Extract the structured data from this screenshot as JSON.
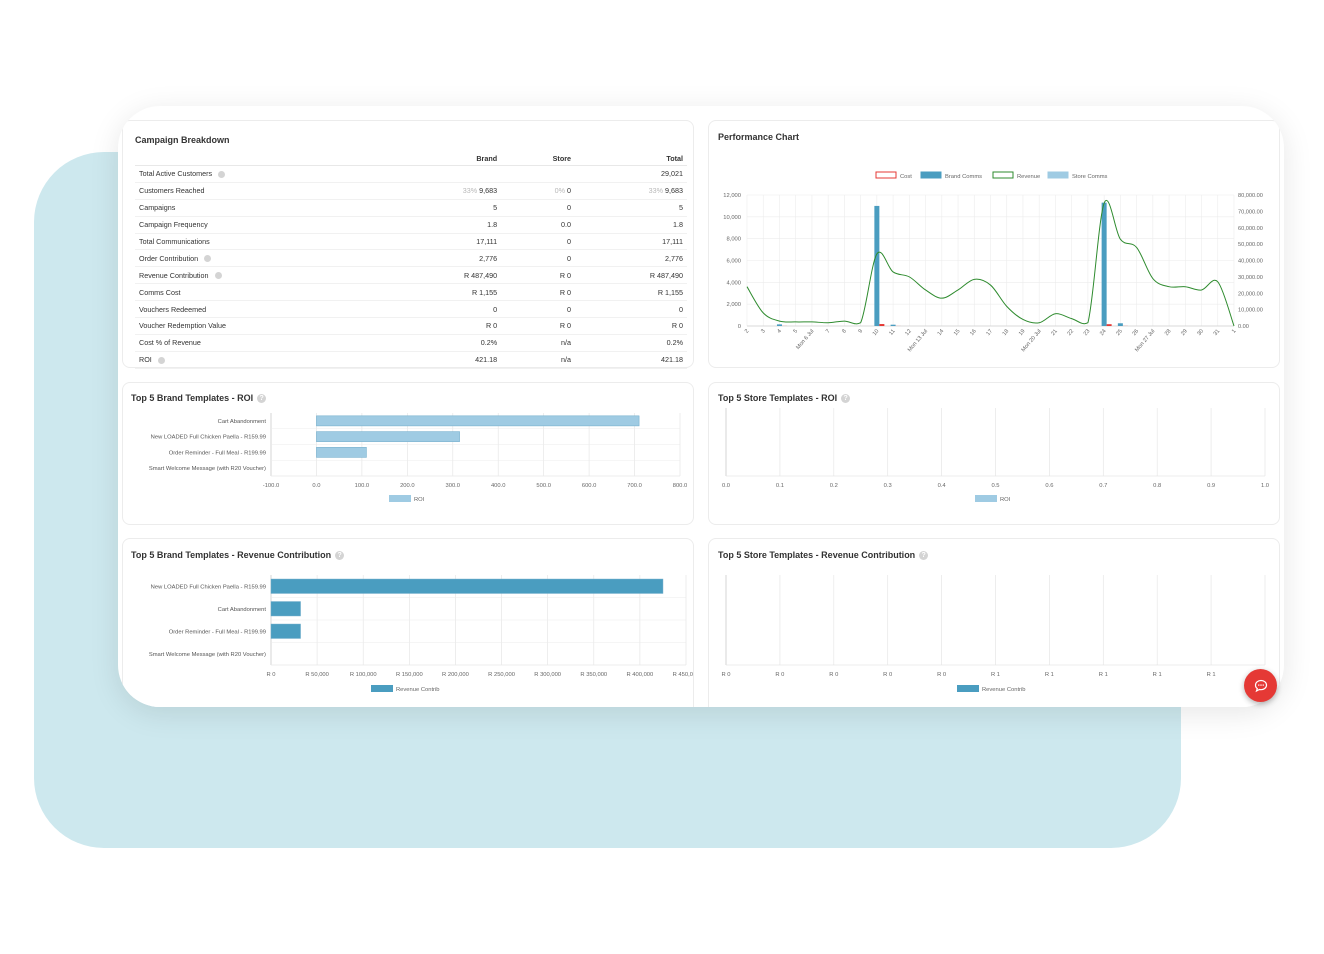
{
  "campaign_breakdown": {
    "title": "Campaign Breakdown",
    "headers": [
      "Brand",
      "Store",
      "Total"
    ],
    "rows": [
      {
        "label": "Total Active Customers",
        "help": true,
        "brand": "",
        "brand_pct": "",
        "store": "",
        "store_pct": "",
        "total": "29,021",
        "total_pct": ""
      },
      {
        "label": "Customers Reached",
        "help": false,
        "brand": "9,683",
        "brand_pct": "33%",
        "store": "0",
        "store_pct": "0%",
        "total": "9,683",
        "total_pct": "33%"
      },
      {
        "label": "Campaigns",
        "help": false,
        "brand": "5",
        "brand_pct": "",
        "store": "0",
        "store_pct": "",
        "total": "5",
        "total_pct": ""
      },
      {
        "label": "Campaign Frequency",
        "help": false,
        "brand": "1.8",
        "brand_pct": "",
        "store": "0.0",
        "store_pct": "",
        "total": "1.8",
        "total_pct": ""
      },
      {
        "label": "Total Communications",
        "help": false,
        "brand": "17,111",
        "brand_pct": "",
        "store": "0",
        "store_pct": "",
        "total": "17,111",
        "total_pct": ""
      },
      {
        "label": "Order Contribution",
        "help": true,
        "brand": "2,776",
        "brand_pct": "",
        "store": "0",
        "store_pct": "",
        "total": "2,776",
        "total_pct": ""
      },
      {
        "label": "Revenue Contribution",
        "help": true,
        "brand": "R 487,490",
        "brand_pct": "",
        "store": "R 0",
        "store_pct": "",
        "total": "R 487,490",
        "total_pct": ""
      },
      {
        "label": "Comms Cost",
        "help": false,
        "brand": "R 1,155",
        "brand_pct": "",
        "store": "R 0",
        "store_pct": "",
        "total": "R 1,155",
        "total_pct": ""
      },
      {
        "label": "Vouchers Redeemed",
        "help": false,
        "brand": "0",
        "brand_pct": "",
        "store": "0",
        "store_pct": "",
        "total": "0",
        "total_pct": ""
      },
      {
        "label": "Voucher Redemption Value",
        "help": false,
        "brand": "R 0",
        "brand_pct": "",
        "store": "R 0",
        "store_pct": "",
        "total": "R 0",
        "total_pct": ""
      },
      {
        "label": "Cost % of Revenue",
        "help": false,
        "brand": "0.2%",
        "brand_pct": "",
        "store": "n/a",
        "store_pct": "",
        "total": "0.2%",
        "total_pct": ""
      },
      {
        "label": "ROI",
        "help": true,
        "brand": "421.18",
        "brand_pct": "",
        "store": "n/a",
        "store_pct": "",
        "total": "421.18",
        "total_pct": ""
      }
    ]
  },
  "colors": {
    "cost": "#e53935",
    "brand_comms": "#4a9dc0",
    "revenue": "#2e8b2e",
    "store_comms": "#9fcbe3",
    "roi_bar": "#9fcbe3",
    "rev_bar": "#4a9dc0",
    "background_blob": "#cde8ee",
    "chat_button": "#e53935"
  },
  "icons": {
    "help": "question-circle-icon",
    "chat": "chat-bubble-icon"
  },
  "help_glyph": "?",
  "chart_data": [
    {
      "type": "line",
      "title": "Performance Chart",
      "legend": [
        "Cost",
        "Brand Comms",
        "Revenue",
        "Store Comms"
      ],
      "legend_position": "top-center",
      "x_labels": [
        "2",
        "3",
        "4",
        "5",
        "Mon 6 Jul",
        "7",
        "8",
        "9",
        "10",
        "11",
        "12",
        "Mon 13 Jul",
        "14",
        "15",
        "16",
        "17",
        "18",
        "19",
        "Mon 20 Jul",
        "21",
        "22",
        "23",
        "24",
        "25",
        "26",
        "Mon 27 Jul",
        "28",
        "29",
        "30",
        "31",
        "1"
      ],
      "y_left_ticks": [
        "0",
        "2,000",
        "4,000",
        "6,000",
        "8,000",
        "10,000",
        "12,000"
      ],
      "y_left_range": [
        0,
        12000
      ],
      "y_right_ticks": [
        "0.00",
        "10,000.00",
        "20,000.00",
        "30,000.00",
        "40,000.00",
        "50,000.00",
        "60,000.00",
        "70,000.00",
        "80,000.00"
      ],
      "y_right_range": [
        0,
        80000
      ],
      "grid": true,
      "series": [
        {
          "name": "Brand Comms",
          "type": "bar",
          "axis": "left",
          "values": [
            0,
            0,
            150,
            0,
            0,
            0,
            0,
            0,
            11000,
            120,
            0,
            0,
            0,
            0,
            0,
            0,
            0,
            0,
            0,
            0,
            0,
            0,
            11300,
            250,
            0,
            0,
            0,
            0,
            0,
            0,
            0
          ]
        },
        {
          "name": "Cost",
          "type": "bar",
          "axis": "right",
          "values": [
            0,
            0,
            50,
            0,
            0,
            0,
            0,
            0,
            1200,
            40,
            0,
            0,
            0,
            0,
            0,
            0,
            0,
            0,
            0,
            0,
            0,
            0,
            1100,
            60,
            0,
            0,
            0,
            0,
            0,
            0,
            0
          ]
        },
        {
          "name": "Revenue",
          "type": "line",
          "axis": "right",
          "values": [
            24000,
            8000,
            3000,
            2500,
            2500,
            2000,
            3000,
            2000,
            44000,
            33000,
            30000,
            22000,
            17000,
            22000,
            28500,
            25000,
            12000,
            4000,
            2000,
            7500,
            4500,
            2000,
            75000,
            53000,
            48000,
            29000,
            24000,
            24000,
            22000,
            27000,
            0
          ]
        },
        {
          "name": "Store Comms",
          "type": "bar",
          "axis": "left",
          "values": [
            0,
            0,
            0,
            0,
            0,
            0,
            0,
            0,
            0,
            0,
            0,
            0,
            0,
            0,
            0,
            0,
            0,
            0,
            0,
            0,
            0,
            0,
            0,
            0,
            0,
            0,
            0,
            0,
            0,
            0,
            0
          ]
        }
      ]
    },
    {
      "type": "bar",
      "orientation": "horizontal",
      "title": "Top 5 Brand Templates - ROI",
      "categories": [
        "Cart Abandonment",
        "New LOADED Full Chicken Paella - R159.99",
        "Order Reminder - Full Meal - R199.99",
        "Smart Welcome Message (with R20 Voucher)"
      ],
      "values": [
        710,
        315,
        110,
        0
      ],
      "xlim": [
        -100,
        800
      ],
      "x_ticks": [
        "-100.0",
        "0.0",
        "100.0",
        "200.0",
        "300.0",
        "400.0",
        "500.0",
        "600.0",
        "700.0",
        "800.0"
      ],
      "legend": [
        "ROI"
      ],
      "legend_position": "bottom"
    },
    {
      "type": "bar",
      "orientation": "horizontal",
      "title": "Top 5 Store Templates - ROI",
      "categories": [],
      "values": [],
      "xlim": [
        0,
        1
      ],
      "x_ticks": [
        "0.0",
        "0.1",
        "0.2",
        "0.3",
        "0.4",
        "0.5",
        "0.6",
        "0.7",
        "0.8",
        "0.9",
        "1.0"
      ],
      "legend": [
        "ROI"
      ],
      "legend_position": "bottom"
    },
    {
      "type": "bar",
      "orientation": "horizontal",
      "title": "Top 5 Brand Templates - Revenue Contribution",
      "categories": [
        "New LOADED Full Chicken Paella - R159.99",
        "Cart Abandonment",
        "Order Reminder - Full Meal - R199.99",
        "Smart Welcome Message (with R20 Voucher)"
      ],
      "values": [
        425000,
        32000,
        32000,
        0
      ],
      "xlim": [
        0,
        450000
      ],
      "x_ticks": [
        "R 0",
        "R 50,000",
        "R 100,000",
        "R 150,000",
        "R 200,000",
        "R 250,000",
        "R 300,000",
        "R 350,000",
        "R 400,000",
        "R 450,000"
      ],
      "legend": [
        "Revenue Contrib"
      ],
      "legend_position": "bottom"
    },
    {
      "type": "bar",
      "orientation": "horizontal",
      "title": "Top 5 Store Templates - Revenue Contribution",
      "categories": [],
      "values": [],
      "xlim": [
        0,
        1
      ],
      "x_ticks": [
        "R 0",
        "R 0",
        "R 0",
        "R 0",
        "R 0",
        "R 1",
        "R 1",
        "R 1",
        "R 1",
        "R 1",
        "R 1"
      ],
      "legend": [
        "Revenue Contrib"
      ],
      "legend_position": "bottom"
    }
  ]
}
